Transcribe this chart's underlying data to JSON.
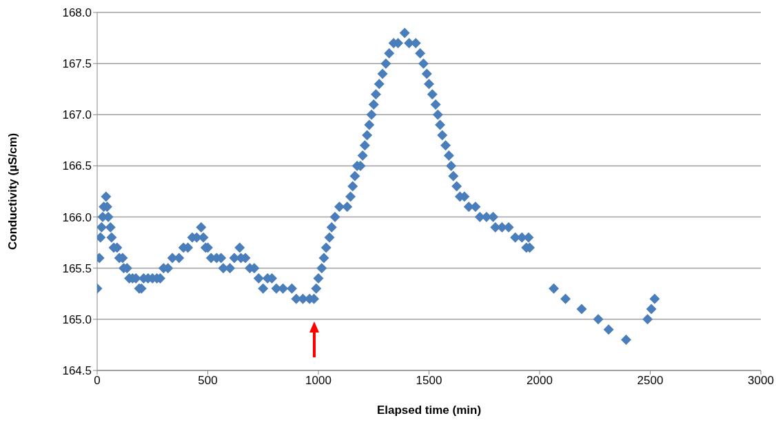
{
  "chart_data": {
    "type": "scatter",
    "xlabel": "Elapsed time (min)",
    "ylabel": "Conductivity (µS/cm)",
    "xlim": [
      0,
      3000
    ],
    "xticks": [
      0,
      500,
      1000,
      1500,
      2000,
      2500,
      3000
    ],
    "ylim": [
      164.5,
      168.0
    ],
    "yticks": [
      {
        "value": 164.5,
        "label": "164.5"
      },
      {
        "value": 165,
        "label": "165.0"
      },
      {
        "value": 165.5,
        "label": "165.5"
      },
      {
        "value": 166,
        "label": "166.0"
      },
      {
        "value": 166.5,
        "label": "166.5"
      },
      {
        "value": 167,
        "label": "167.0"
      },
      {
        "value": 167.5,
        "label": "167.5"
      },
      {
        "value": 168,
        "label": "168.0"
      }
    ],
    "grid": "y",
    "marker": "diamond",
    "series": [
      {
        "color": "#4a7ebb",
        "x": [
          0,
          10,
          15,
          20,
          25,
          30,
          40,
          45,
          50,
          60,
          65,
          75,
          90,
          100,
          115,
          120,
          135,
          145,
          160,
          175,
          190,
          200,
          210,
          230,
          250,
          270,
          285,
          300,
          320,
          340,
          370,
          390,
          410,
          430,
          450,
          470,
          480,
          490,
          500,
          515,
          540,
          560,
          570,
          600,
          620,
          644,
          650,
          670,
          690,
          710,
          730,
          750,
          770,
          790,
          810,
          840,
          880,
          900,
          930,
          960,
          980,
          990,
          1000,
          1015,
          1025,
          1035,
          1050,
          1060,
          1075,
          1095,
          1130,
          1145,
          1155,
          1165,
          1175,
          1190,
          1200,
          1210,
          1220,
          1230,
          1240,
          1250,
          1260,
          1275,
          1290,
          1305,
          1320,
          1340,
          1360,
          1390,
          1410,
          1440,
          1460,
          1475,
          1490,
          1500,
          1515,
          1530,
          1540,
          1550,
          1560,
          1575,
          1590,
          1600,
          1610,
          1625,
          1640,
          1660,
          1680,
          1710,
          1730,
          1760,
          1790,
          1800,
          1830,
          1860,
          1890,
          1920,
          1940,
          1950,
          1955,
          2064,
          2117,
          2190,
          2265,
          2312,
          2391,
          2488,
          2505,
          2520
        ],
        "values": [
          165.3,
          165.6,
          165.8,
          165.9,
          166.0,
          166.1,
          166.2,
          166.1,
          166.0,
          165.9,
          165.8,
          165.7,
          165.7,
          165.6,
          165.6,
          165.5,
          165.5,
          165.4,
          165.4,
          165.4,
          165.3,
          165.3,
          165.4,
          165.4,
          165.4,
          165.4,
          165.4,
          165.5,
          165.5,
          165.6,
          165.6,
          165.7,
          165.7,
          165.8,
          165.8,
          165.9,
          165.8,
          165.7,
          165.7,
          165.6,
          165.6,
          165.6,
          165.5,
          165.5,
          165.6,
          165.7,
          165.6,
          165.6,
          165.5,
          165.5,
          165.4,
          165.3,
          165.4,
          165.4,
          165.3,
          165.3,
          165.3,
          165.2,
          165.2,
          165.2,
          165.2,
          165.3,
          165.4,
          165.5,
          165.6,
          165.7,
          165.8,
          165.9,
          166.0,
          166.1,
          166.1,
          166.2,
          166.3,
          166.4,
          166.5,
          166.5,
          166.6,
          166.7,
          166.8,
          166.9,
          167.0,
          167.1,
          167.2,
          167.3,
          167.4,
          167.5,
          167.6,
          167.7,
          167.7,
          167.8,
          167.7,
          167.7,
          167.6,
          167.5,
          167.4,
          167.3,
          167.2,
          167.1,
          167.0,
          166.9,
          166.8,
          166.7,
          166.6,
          166.5,
          166.4,
          166.3,
          166.2,
          166.2,
          166.1,
          166.1,
          166.0,
          166.0,
          166.0,
          165.9,
          165.9,
          165.9,
          165.8,
          165.8,
          165.7,
          165.8,
          165.7,
          165.3,
          165.2,
          165.1,
          165.0,
          164.9,
          164.8,
          165.0,
          165.1,
          165.2
        ]
      }
    ]
  }
}
